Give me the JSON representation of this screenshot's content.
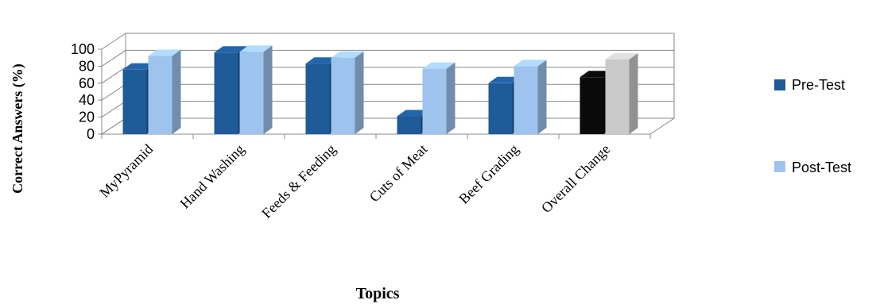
{
  "chart_data": {
    "type": "bar",
    "categories": [
      "MyPyramid",
      "Hand Washing",
      "Feeds & Feeding",
      "Cuts of Meat",
      "Beef Grading",
      "Overall Change"
    ],
    "series": [
      {
        "name": "Pre-Test",
        "values": [
          76,
          96,
          83,
          21,
          60,
          67
        ]
      },
      {
        "name": "Post-Test",
        "values": [
          92,
          97,
          90,
          77,
          80,
          88
        ]
      }
    ],
    "xlabel": "Topics",
    "ylabel": "Correct Answers (%)",
    "ylim": [
      0,
      100
    ],
    "yticks": [
      "0",
      "20",
      "40",
      "60",
      "80",
      "100"
    ],
    "grid": true,
    "legend_position": "right",
    "colors": {
      "pre": "#1f5a99",
      "post": "#9ec4ee",
      "overall_pre": "#0a0a0a",
      "overall_post": "#c9c9c9",
      "wall": "#ffffff",
      "grid": "#8a8a8a"
    }
  }
}
